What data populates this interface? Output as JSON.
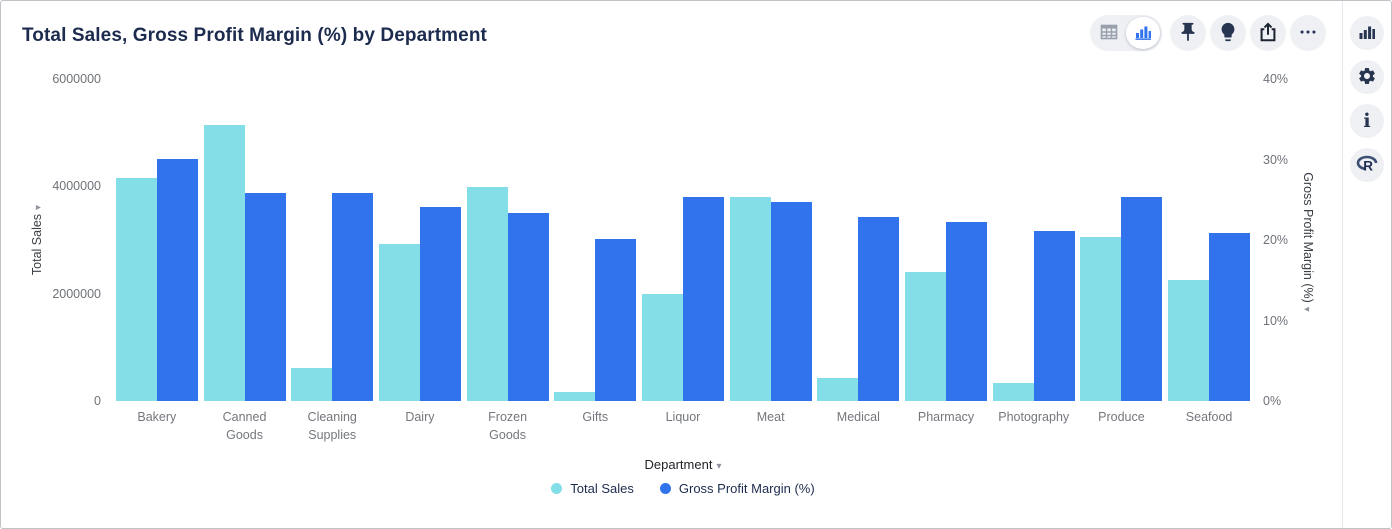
{
  "header": {
    "title": "Total Sales, Gross Profit Margin (%) by Department"
  },
  "toolbar": {
    "icons": [
      "table-view-icon",
      "chart-view-icon",
      "pin-icon",
      "insights-bulb-icon",
      "share-icon",
      "more-options-icon"
    ],
    "selected_view": "chart-view"
  },
  "side_rail": {
    "icons": [
      "chart-type-icon",
      "settings-gear-icon",
      "info-icon",
      "r-analysis-icon"
    ]
  },
  "glyphs": {
    "sort_caret": "▾",
    "info": "i",
    "r_logo": "R"
  },
  "colors": {
    "total_sales_bar": "#84DEE7",
    "gross_profit_margin_bar": "#3173EC",
    "title_text": "#1c2b4e",
    "icon_navy": "#273550"
  },
  "chart_data": {
    "type": "bar",
    "title": "Total Sales, Gross Profit Margin (%) by Department",
    "xlabel": "Department",
    "grid": false,
    "legend_position": "bottom",
    "categories": [
      "Bakery",
      "Canned Goods",
      "Cleaning Supplies",
      "Dairy",
      "Frozen Goods",
      "Gifts",
      "Liquor",
      "Meat",
      "Medical",
      "Pharmacy",
      "Photography",
      "Produce",
      "Seafood"
    ],
    "series": [
      {
        "name": "Total Sales",
        "axis": "left",
        "color": "#84DEE7",
        "values": [
          4150000,
          5150000,
          620000,
          2920000,
          3980000,
          170000,
          2000000,
          3810000,
          420000,
          2410000,
          330000,
          3060000,
          2260000
        ]
      },
      {
        "name": "Gross Profit Margin (%)",
        "axis": "right",
        "color": "#3173EC",
        "values": [
          30.1,
          25.9,
          25.8,
          24.1,
          23.4,
          20.1,
          25.4,
          24.7,
          22.9,
          22.2,
          21.1,
          25.3,
          20.9
        ]
      }
    ],
    "left_axis": {
      "title": "Total Sales",
      "max": 6000000,
      "min": 0,
      "ticks": [
        {
          "value": 0,
          "label": "0"
        },
        {
          "value": 2000000,
          "label": "2000000"
        },
        {
          "value": 4000000,
          "label": "4000000"
        },
        {
          "value": 6000000,
          "label": "6000000"
        }
      ]
    },
    "right_axis": {
      "title": "Gross Profit Margin (%)",
      "max": 40,
      "min": 0,
      "ticks": [
        {
          "value": 0,
          "label": "0%"
        },
        {
          "value": 10,
          "label": "10%"
        },
        {
          "value": 20,
          "label": "20%"
        },
        {
          "value": 30,
          "label": "30%"
        },
        {
          "value": 40,
          "label": "40%"
        }
      ]
    },
    "legend": [
      {
        "label": "Total Sales",
        "color": "#84DEE7"
      },
      {
        "label": "Gross Profit Margin (%)",
        "color": "#3173EC"
      }
    ]
  }
}
